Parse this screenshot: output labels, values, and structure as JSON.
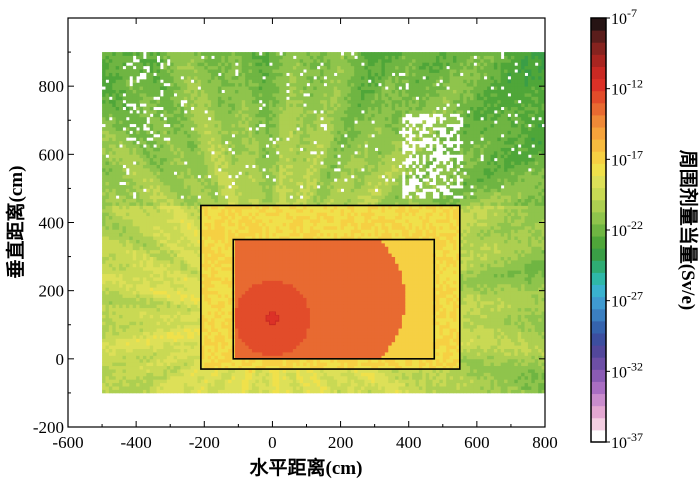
{
  "chart_data": {
    "type": "heatmap",
    "xlabel": "水平距离(cm)",
    "ylabel": "垂直距离(cm)",
    "colorbar_label": "周围剂量当量(Sv/e)",
    "xlim": [
      -600,
      800
    ],
    "ylim": [
      -200,
      1000
    ],
    "x_ticks": [
      -600,
      -400,
      -200,
      0,
      200,
      400,
      600,
      800
    ],
    "y_ticks": [
      -200,
      0,
      200,
      400,
      600,
      800
    ],
    "colorbar_scale": "log",
    "colorbar_range_exp": [
      -37,
      -7
    ],
    "colorbar_ticks": [
      {
        "base": "10",
        "exp": "-7",
        "value_exp": -7
      },
      {
        "base": "10",
        "exp": "-12",
        "value_exp": -12
      },
      {
        "base": "10",
        "exp": "-17",
        "value_exp": -17
      },
      {
        "base": "10",
        "exp": "-22",
        "value_exp": -22
      },
      {
        "base": "10",
        "exp": "-27",
        "value_exp": -27
      },
      {
        "base": "10",
        "exp": "-32",
        "value_exp": -32
      },
      {
        "base": "10",
        "exp": "-37",
        "value_exp": -37
      }
    ],
    "colorbar_colors": [
      "#ffffff",
      "#f4cfe2",
      "#e3a7d1",
      "#c98ccc",
      "#a96ec2",
      "#8a5bb4",
      "#6d4fa6",
      "#52479b",
      "#3c4e9f",
      "#3563ad",
      "#3b7fc0",
      "#3f9ad0",
      "#3ab2cf",
      "#2fb8a8",
      "#2fac74",
      "#3a9e46",
      "#4fa639",
      "#6fb542",
      "#8fc44c",
      "#adcf51",
      "#c9d954",
      "#dde058",
      "#f0e14b",
      "#f6d043",
      "#f7bb3f",
      "#f5a33b",
      "#ef8937",
      "#e86a31",
      "#e24c2a",
      "#dc3127",
      "#c92923",
      "#a92520",
      "#86231f",
      "#5a1d1b",
      "#261414"
    ],
    "data_extent_x": [
      -500,
      800
    ],
    "data_extent_y": [
      -100,
      900
    ],
    "source_point": {
      "x": 0,
      "y": 120,
      "log10_dose": -11
    },
    "field_description": [
      {
        "region": "background",
        "log10_dose_approx": -20
      },
      {
        "region": "inner-room",
        "log10_dose_approx": -13
      },
      {
        "region": "near-source",
        "log10_dose_approx": -12
      }
    ],
    "overlays": [
      {
        "name": "outer-wall",
        "x": [
          -210,
          550
        ],
        "y": [
          -30,
          450
        ]
      },
      {
        "name": "inner-room",
        "x": [
          -115,
          475
        ],
        "y": [
          0,
          350
        ]
      }
    ]
  }
}
